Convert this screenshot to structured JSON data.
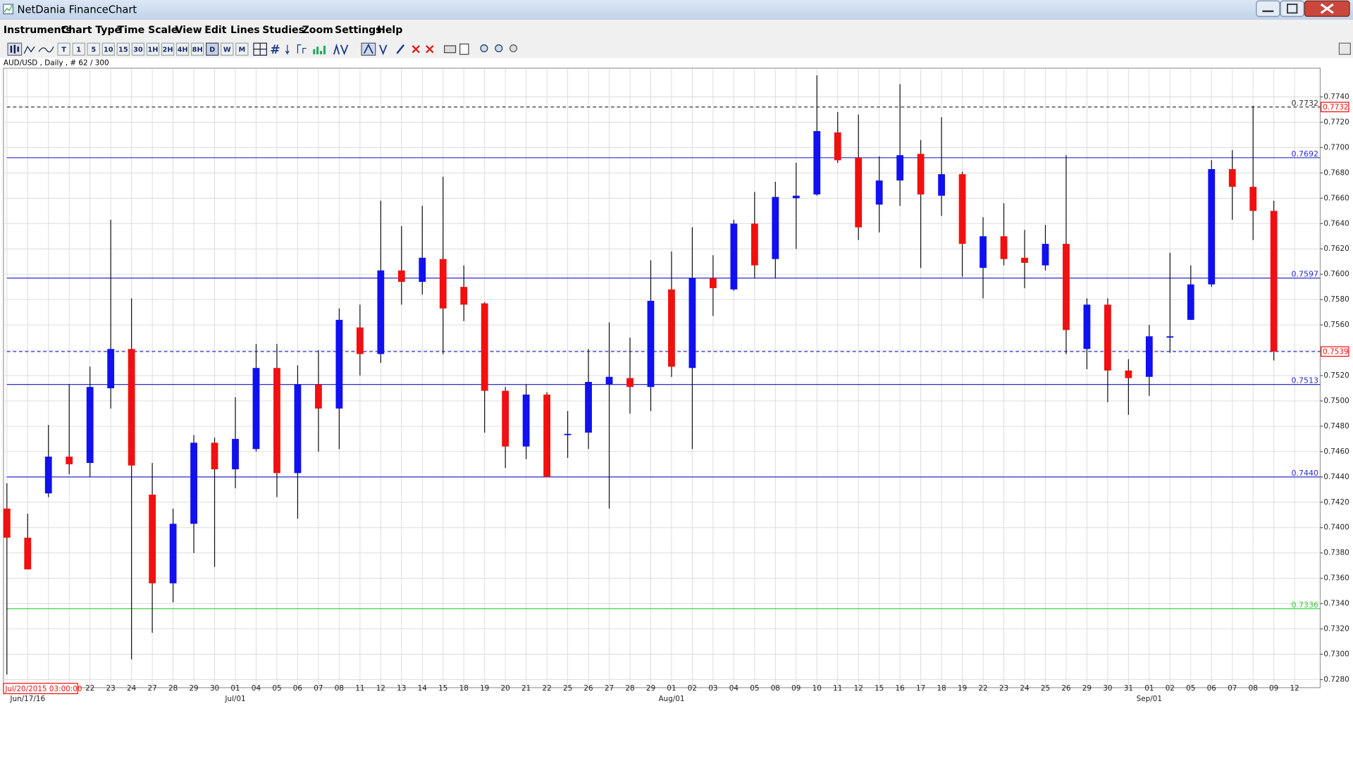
{
  "window": {
    "title": "NetDania FinanceChart",
    "menu": [
      "Instruments",
      "Chart Type",
      "Time Scale",
      "View",
      "Edit",
      "Lines",
      "Studies",
      "Zoom",
      "Settings",
      "Help"
    ],
    "timescales": [
      "T",
      "1",
      "5",
      "10",
      "15",
      "30",
      "1H",
      "2H",
      "4H",
      "8H",
      "D",
      "W",
      "M"
    ],
    "active_timescale": "D"
  },
  "chart_data": {
    "type": "candlestick",
    "title": "AUD/USD , Daily , # 62 / 300",
    "categories": [
      null,
      null,
      null,
      null,
      "22",
      "23",
      "24",
      "27",
      "28",
      "29",
      "30",
      "01",
      "04",
      "05",
      "06",
      "07",
      "08",
      "11",
      "12",
      "13",
      "14",
      "15",
      "18",
      "19",
      "20",
      "21",
      "22",
      "25",
      "26",
      "27",
      "28",
      "29",
      "01",
      "02",
      "03",
      "04",
      "05",
      "08",
      "09",
      "10",
      "11",
      "12",
      "15",
      "16",
      "17",
      "18",
      "19",
      "22",
      "23",
      "24",
      "25",
      "26",
      "29",
      "30",
      "31",
      "01",
      "02",
      "05",
      "06",
      "07",
      "08",
      "09",
      "12"
    ],
    "month_labels": [
      null,
      "Jun/17/16",
      null,
      null,
      null,
      null,
      null,
      null,
      null,
      null,
      null,
      "Jul/01",
      null,
      null,
      null,
      null,
      null,
      null,
      null,
      null,
      null,
      null,
      null,
      null,
      null,
      null,
      null,
      null,
      null,
      null,
      null,
      null,
      "Aug/01",
      null,
      null,
      null,
      null,
      null,
      null,
      null,
      null,
      null,
      null,
      null,
      null,
      null,
      null,
      null,
      null,
      null,
      null,
      null,
      null,
      null,
      null,
      "Sep/01",
      null,
      null,
      null,
      null,
      null,
      null,
      null
    ],
    "open": [
      0.7415,
      0.7392,
      0.7427,
      0.7456,
      0.7451,
      0.751,
      0.7541,
      0.7426,
      0.7356,
      0.7403,
      0.7467,
      0.7446,
      0.7462,
      0.7526,
      0.7443,
      0.7513,
      0.7494,
      0.7558,
      0.7537,
      0.7603,
      0.7594,
      0.7612,
      0.759,
      0.7577,
      0.7508,
      0.7464,
      0.7505,
      0.7473,
      0.7475,
      0.7513,
      0.7518,
      0.7511,
      0.7588,
      0.7526,
      0.7597,
      0.7588,
      0.764,
      0.7612,
      0.766,
      0.7663,
      0.7712,
      0.7692,
      0.7655,
      0.7674,
      0.7695,
      0.7662,
      0.7679,
      0.7605,
      0.763,
      0.7613,
      0.7607,
      0.7624,
      0.7541,
      0.7576,
      0.7524,
      0.7519,
      0.755,
      0.7564,
      0.7592,
      0.7683,
      0.7669,
      0.765,
      null
    ],
    "high": [
      0.7435,
      0.7411,
      0.7481,
      0.7513,
      0.7527,
      0.7643,
      0.7581,
      0.7451,
      0.7415,
      0.7473,
      0.7471,
      0.7503,
      0.7545,
      0.7545,
      0.7528,
      0.754,
      0.7573,
      0.7576,
      0.7658,
      0.7638,
      0.7654,
      0.7677,
      0.7607,
      0.7578,
      0.7511,
      0.7513,
      0.7507,
      0.7492,
      0.7541,
      0.7562,
      0.755,
      0.7611,
      0.7618,
      0.7637,
      0.7615,
      0.7643,
      0.7665,
      0.7673,
      0.7688,
      0.7757,
      0.7728,
      0.7726,
      0.7693,
      0.775,
      0.7706,
      0.7724,
      0.7681,
      0.7645,
      0.7656,
      0.7635,
      0.7639,
      0.7694,
      0.7581,
      0.7581,
      0.7533,
      0.756,
      0.7617,
      0.7607,
      0.769,
      0.7698,
      0.7733,
      0.7658,
      null
    ],
    "low": [
      0.7284,
      0.7367,
      0.7424,
      0.7442,
      0.744,
      0.7494,
      0.7296,
      0.7317,
      0.7341,
      0.738,
      0.7369,
      0.7431,
      0.746,
      0.7424,
      0.7407,
      0.746,
      0.7462,
      0.752,
      0.753,
      0.7576,
      0.7584,
      0.7537,
      0.7563,
      0.7475,
      0.7447,
      0.7454,
      0.744,
      0.7455,
      0.7462,
      0.7415,
      0.749,
      0.7492,
      0.7519,
      0.7462,
      0.7567,
      0.7587,
      0.7597,
      0.7597,
      0.762,
      0.7662,
      0.7688,
      0.7627,
      0.7633,
      0.7654,
      0.7605,
      0.7646,
      0.7598,
      0.7581,
      0.7607,
      0.7589,
      0.7603,
      0.7537,
      0.7525,
      0.7499,
      0.7489,
      0.7504,
      0.7538,
      0.7564,
      0.759,
      0.7643,
      0.7627,
      0.7532,
      null
    ],
    "close": [
      0.7392,
      0.7367,
      0.7456,
      0.745,
      0.7511,
      0.7541,
      0.7449,
      0.7356,
      0.7403,
      0.7467,
      0.7446,
      0.747,
      0.7526,
      0.7443,
      0.7513,
      0.7494,
      0.7564,
      0.7537,
      0.7603,
      0.7594,
      0.7613,
      0.7573,
      0.7576,
      0.7508,
      0.7464,
      0.7505,
      0.744,
      0.7474,
      0.7515,
      0.7519,
      0.7511,
      0.7579,
      0.7527,
      0.7597,
      0.7589,
      0.764,
      0.7607,
      0.7661,
      0.7662,
      0.7713,
      0.769,
      0.7637,
      0.7674,
      0.7694,
      0.7663,
      0.7679,
      0.7624,
      0.763,
      0.7612,
      0.7609,
      0.7624,
      0.7556,
      0.7576,
      0.7524,
      0.7518,
      0.7551,
      0.7551,
      0.7592,
      0.7683,
      0.7669,
      0.765,
      0.7539,
      null
    ],
    "up_color": "#1010f0",
    "down_color": "#f01010",
    "ylim": [
      0.7275,
      0.7762
    ],
    "yticks": [
      {
        "value": 0.728,
        "label": "0.7280"
      },
      {
        "value": 0.73,
        "label": "0.7300"
      },
      {
        "value": 0.732,
        "label": "0.7320"
      },
      {
        "value": 0.734,
        "label": "0.7340"
      },
      {
        "value": 0.736,
        "label": "0.7360"
      },
      {
        "value": 0.738,
        "label": "0.7380"
      },
      {
        "value": 0.74,
        "label": "0.7400"
      },
      {
        "value": 0.742,
        "label": "0.7420"
      },
      {
        "value": 0.744,
        "label": "0.7440"
      },
      {
        "value": 0.746,
        "label": "0.7460"
      },
      {
        "value": 0.748,
        "label": "0.7480"
      },
      {
        "value": 0.75,
        "label": "0.7500"
      },
      {
        "value": 0.752,
        "label": "0.7520"
      },
      {
        "value": 0.754,
        "label": "0.7540"
      },
      {
        "value": 0.756,
        "label": "0.7560"
      },
      {
        "value": 0.758,
        "label": "0.7580"
      },
      {
        "value": 0.76,
        "label": "0.7600"
      },
      {
        "value": 0.762,
        "label": "0.7620"
      },
      {
        "value": 0.764,
        "label": "0.7640"
      },
      {
        "value": 0.766,
        "label": "0.7660"
      },
      {
        "value": 0.768,
        "label": "0.7680"
      },
      {
        "value": 0.77,
        "label": "0.7700"
      },
      {
        "value": 0.772,
        "label": "0.7720"
      },
      {
        "value": 0.774,
        "label": "0.7740"
      }
    ],
    "grid": true,
    "levels": [
      {
        "value": 0.7732,
        "color": "#333333",
        "dashed": true,
        "caption": true,
        "tag": true
      },
      {
        "value": 0.7692,
        "color": "#2a2ad0",
        "dashed": false,
        "caption": true,
        "tag": false
      },
      {
        "value": 0.7597,
        "color": "#2a2ad0",
        "dashed": false,
        "caption": true,
        "tag": false
      },
      {
        "value": 0.7539,
        "color": "#2a2ad0",
        "dashed": true,
        "caption": false,
        "tag": true
      },
      {
        "value": 0.7513,
        "color": "#2a2ad0",
        "dashed": false,
        "caption": true,
        "tag": false
      },
      {
        "value": 0.744,
        "label": "0.7440",
        "color": "#2a2ad0",
        "dashed": false,
        "caption": true,
        "tag": false
      },
      {
        "value": 0.7336,
        "color": "#33cc33",
        "dashed": false,
        "caption": true,
        "tag": false
      }
    ],
    "cursor_label": "Jul/20/2015 03:00:00"
  }
}
